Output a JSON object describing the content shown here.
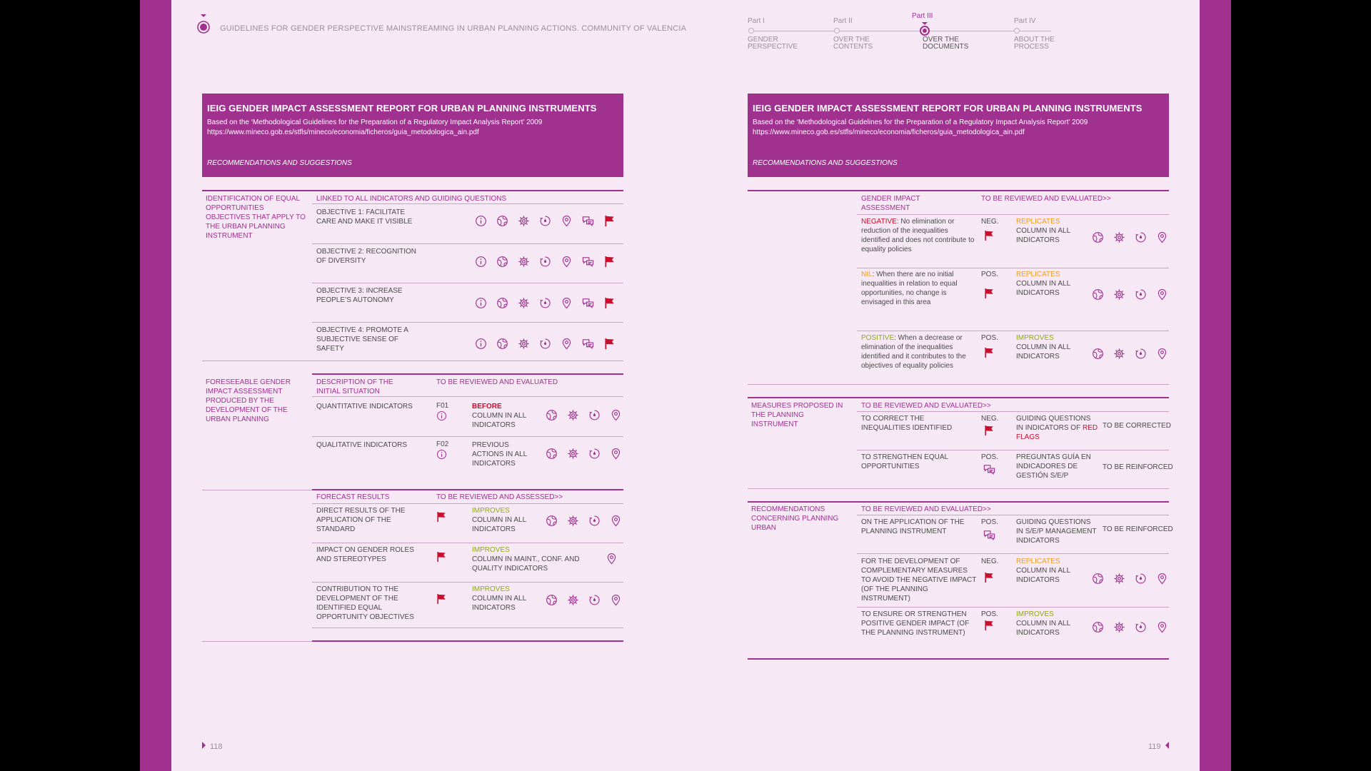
{
  "header": {
    "doc_title": "GUIDELINES FOR GENDER PERSPECTIVE MAINSTREAMING IN URBAN PLANNING ACTIONS. COMMUNITY OF VALENCIA"
  },
  "nav": [
    {
      "label": "Part I",
      "sub": "GENDER PERSPECTIVE",
      "active": false
    },
    {
      "label": "Part II",
      "sub": "OVER THE CONTENTS",
      "active": false
    },
    {
      "label": "Part III",
      "sub": "OVER THE DOCUMENTS",
      "active": true
    },
    {
      "label": "Part IV",
      "sub": "ABOUT THE PROCESS",
      "active": false
    }
  ],
  "banner": {
    "title": "IEIG GENDER IMPACT ASSESSMENT REPORT FOR URBAN PLANNING INSTRUMENTS",
    "subtitle": "Based on the ‘Methodological Guidelines for the Preparation of a Regulatory Impact Analysis Report’ 2009",
    "url": "https://www.mineco.gob.es/stfls/mineco/economia/ficheros/guia_metodologica_ain.pdf",
    "recommendations": "RECOMMENDATIONS AND SUGGESTIONS"
  },
  "colors": {
    "accent": "#a0318f",
    "red": "#c8102e",
    "yellow": "#f0a020",
    "green": "#8fa818",
    "page": "#f6e8f4"
  },
  "icon_names": [
    "info-icon",
    "globe-icon",
    "gear-icon",
    "timer-icon",
    "location-pin-icon",
    "speech-bubbles-icon",
    "red-flag-icon"
  ],
  "left": {
    "s1": {
      "title": "IDENTIFICATION OF EQUAL OPPORTUNITIES OBJECTIVES THAT APPLY TO THE URBAN PLANNING INSTRUMENT",
      "header": "LINKED TO ALL INDICATORS AND GUIDING QUESTIONS",
      "objectives": [
        "OBJECTIVE 1: FACILITATE CARE AND MAKE IT VISIBLE",
        "OBJECTIVE 2: RECOGNITION OF DIVERSITY",
        "OBJECTIVE 3: INCREASE PEOPLE’S AUTONOMY",
        "OBJECTIVE 4: PROMOTE A SUBJECTIVE SENSE OF SAFETY"
      ]
    },
    "s2": {
      "title": "FORESEEABLE GENDER IMPACT ASSESSMENT PRODUCED BY THE DEVELOPMENT OF THE URBAN PLANNING",
      "h1": "DESCRIPTION OF THE INITIAL SITUATION",
      "h2": "TO BE REVIEWED AND EVALUATED",
      "rows": [
        {
          "label": "QUANTITATIVE INDICATORS",
          "code": "F01",
          "kw": "BEFORE",
          "rest": "COLUMN IN ALL INDICATORS"
        },
        {
          "label": "QUALITATIVE INDICATORS",
          "code": "F02",
          "kw": "",
          "rest": "PREVIOUS ACTIONS IN ALL INDICATORS"
        }
      ]
    },
    "s3": {
      "h1": "FORECAST RESULTS",
      "h2": "TO BE REVIEWED AND ASSESSED>>",
      "rows": [
        {
          "label": "DIRECT RESULTS OF THE APPLICATION OF THE STANDARD",
          "kw": "IMPROVES",
          "rest": "COLUMN IN ALL INDICATORS"
        },
        {
          "label": "IMPACT ON GENDER ROLES AND STEREOTYPES",
          "kw": "IMPROVES",
          "rest": "COLUMN IN MAINT., CONF. AND QUALITY INDICATORS"
        },
        {
          "label": "CONTRIBUTION TO THE DEVELOPMENT OF THE IDENTIFIED EQUAL OPPORTUNITY OBJECTIVES",
          "kw": "IMPROVES",
          "rest": "COLUMN IN ALL INDICATORS"
        }
      ]
    },
    "page_number": "118"
  },
  "right": {
    "gi": {
      "h1": "GENDER IMPACT ASSESSMENT",
      "h2": "TO BE REVIEWED AND EVALUATED>>",
      "rows": [
        {
          "lead": "NEGATIVE",
          "text": ": No elimination or reduction of the inequalities identified and does not contribute to equality policies",
          "tag": "NEG.",
          "kw": "REPLICATES",
          "rest": "COLUMN IN ALL INDICATORS"
        },
        {
          "lead": "NIL",
          "text": ": When there are no initial inequalities in relation to equal opportunities, no change is envisaged in this area",
          "tag": "POS.",
          "kw": "REPLICATES",
          "rest": "COLUMN IN ALL INDICATORS"
        },
        {
          "lead": "POSITIVE",
          "text": ": When a decrease or elimination of the inequalities identified and it contributes to the objectives of equality policies",
          "tag": "POS.",
          "kw": "IMPROVES",
          "rest": "COLUMN IN ALL INDICATORS"
        }
      ]
    },
    "mp": {
      "title": "MEASURES PROPOSED IN THE PLANNING INSTRUMENT",
      "h": "TO BE REVIEWED AND EVALUATED>>",
      "rows": [
        {
          "label": "TO CORRECT THE INEQUALITIES IDENTIFIED",
          "tag": "NEG.",
          "desc": "GUIDING QUESTIONS IN INDICATORS OF",
          "desc2": "RED FLAGS",
          "result": "TO BE CORRECTED"
        },
        {
          "label": "TO STRENGTHEN EQUAL OPPORTUNITIES",
          "tag": "POS.",
          "desc": "PREGUNTAS GUÍA EN INDICADORES DE GESTIÓN S/E/P",
          "desc2": "",
          "result": "TO BE REINFORCED"
        }
      ]
    },
    "rc": {
      "title": "RECOMMENDATIONS CONCERNING PLANNING URBAN",
      "h": "TO BE REVIEWED AND EVALUATED>>",
      "rows": [
        {
          "label": "ON THE APPLICATION OF THE PLANNING INSTRUMENT",
          "tag": "POS.",
          "kw": "",
          "desc": "GUIDING QUESTIONS IN S/E/P MANAGEMENT INDICATORS",
          "result": "TO BE REINFORCED"
        },
        {
          "label": "FOR THE DEVELOPMENT OF COMPLEMENTARY MEASURES TO AVOID THE NEGATIVE IMPACT (OF THE PLANNING INSTRUMENT)",
          "tag": "NEG.",
          "kw": "REPLICATES",
          "desc": "COLUMN IN ALL INDICATORS",
          "result": ""
        },
        {
          "label": "TO ENSURE OR STRENGTHEN POSITIVE GENDER IMPACT (OF THE PLANNING INSTRUMENT)",
          "tag": "POS.",
          "kw": "IMPROVES",
          "desc": "COLUMN IN ALL INDICATORS",
          "result": ""
        }
      ]
    },
    "page_number": "119"
  }
}
